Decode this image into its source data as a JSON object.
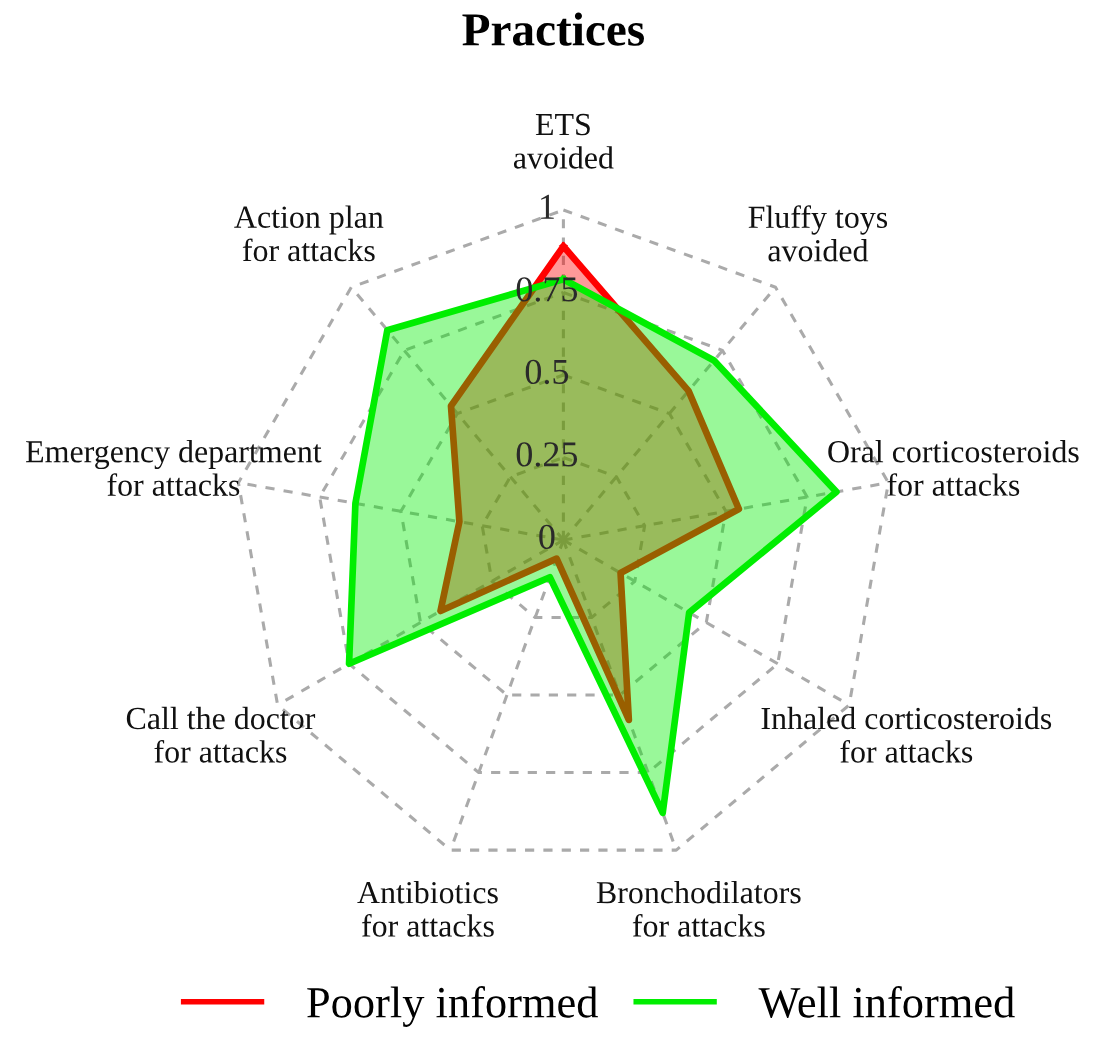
{
  "chart_data": {
    "type": "radar",
    "title": "Practices",
    "categories": [
      "ETS\navoided",
      "Fluffy toys\navoided",
      "Oral corticosteroids\nfor attacks",
      "Inhaled corticosteroids\nfor attacks",
      "Bronchodilators\nfor attacks",
      "Antibiotics\nfor attacks",
      "Call the doctor\nfor attacks",
      "Emergency department\nfor attacks",
      "Action plan\nfor attacks"
    ],
    "series": [
      {
        "name": "Poorly informed",
        "color": "#ff0000",
        "values": [
          0.89,
          0.59,
          0.54,
          0.2,
          0.58,
          0.06,
          0.43,
          0.32,
          0.53
        ]
      },
      {
        "name": "Well informed",
        "color": "#00ee00",
        "values": [
          0.79,
          0.71,
          0.84,
          0.44,
          0.88,
          0.12,
          0.75,
          0.64,
          0.83
        ]
      }
    ],
    "ylim": [
      0,
      1
    ],
    "yticks": [
      0,
      0.25,
      0.5,
      0.75,
      1
    ],
    "grid": true,
    "legend": "bottom"
  }
}
